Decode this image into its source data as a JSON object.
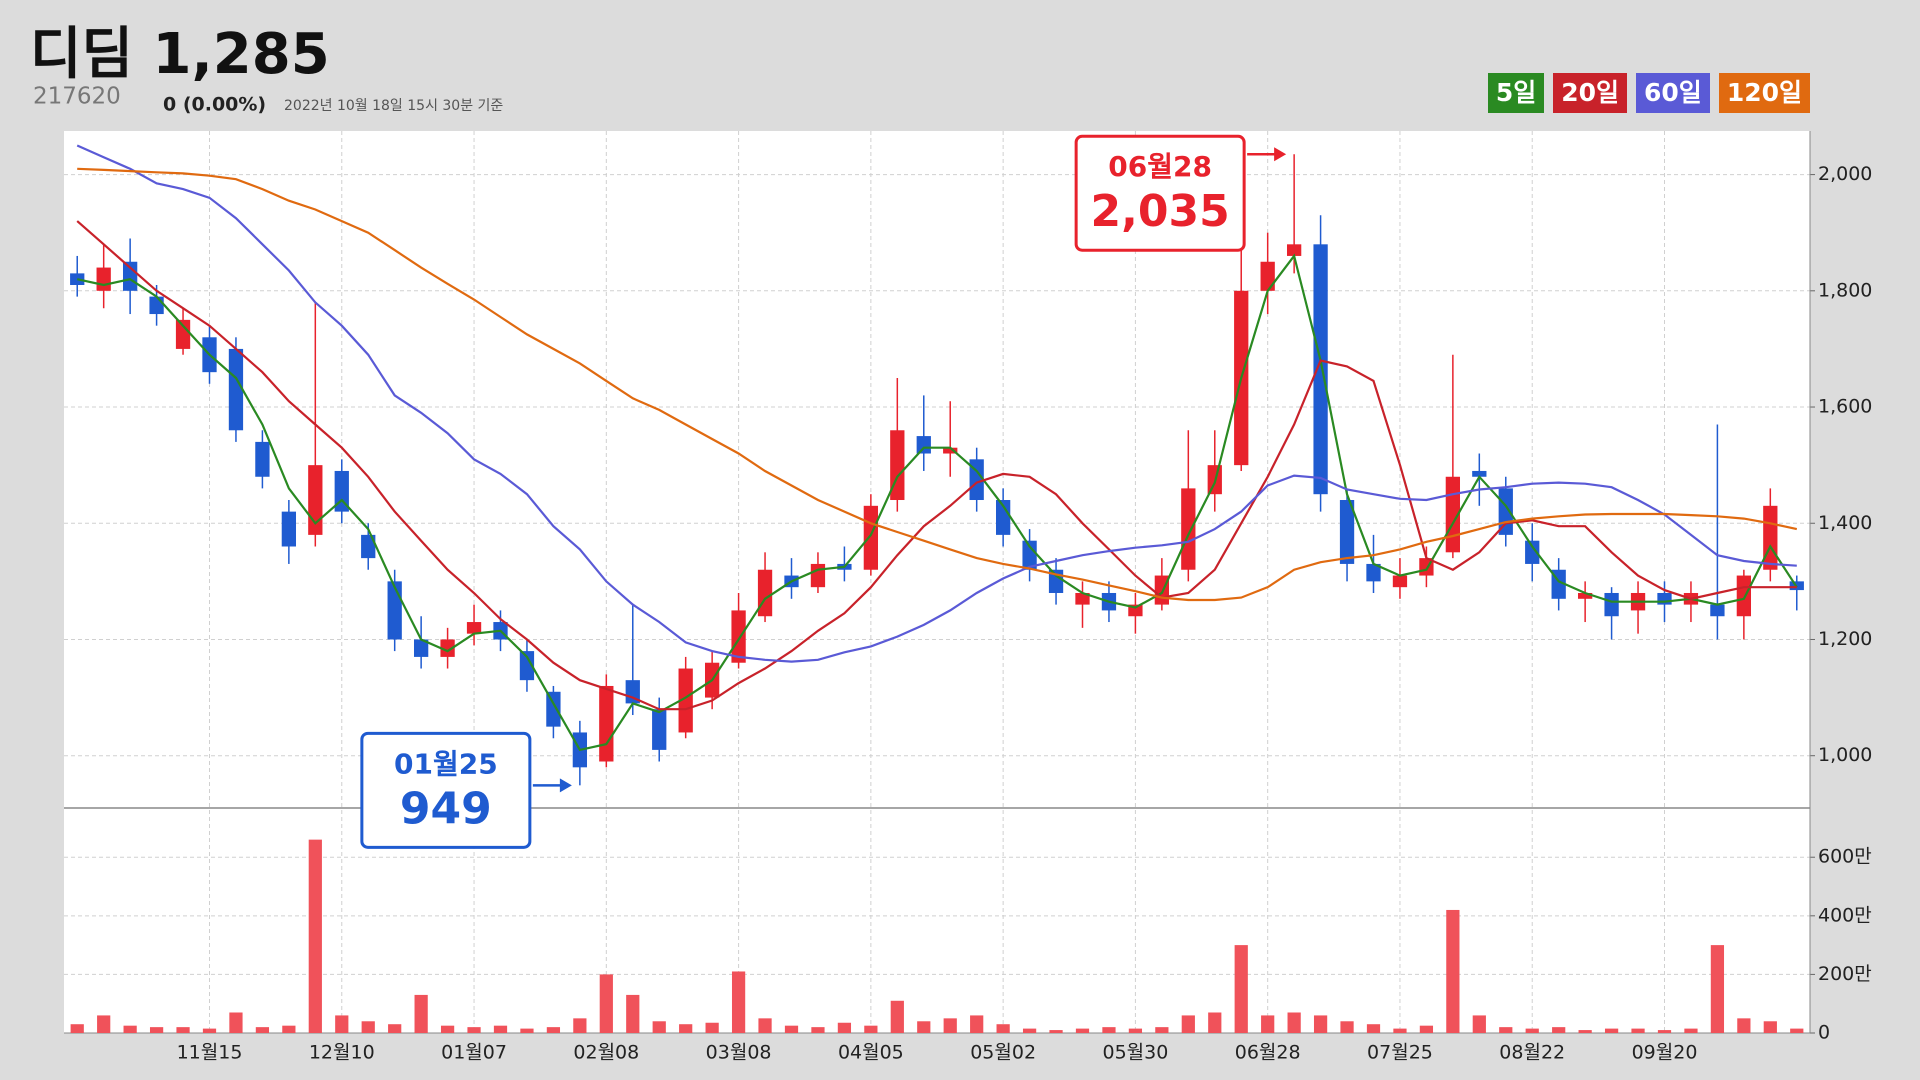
{
  "header": {
    "name": "디딤",
    "price": "1,285",
    "code": "217620",
    "change": "0 (0.00%)",
    "timestamp": "2022년 10월 18일 15시 30분 기준"
  },
  "chart_data": [
    {
      "type": "candlestick",
      "categories": [
        null,
        null,
        null,
        null,
        null,
        "11월15",
        null,
        null,
        null,
        null,
        "12월10",
        null,
        null,
        null,
        null,
        "01월07",
        null,
        null,
        null,
        null,
        "02월08",
        null,
        null,
        null,
        null,
        "03월08",
        null,
        null,
        null,
        null,
        "04월05",
        null,
        null,
        null,
        null,
        "05월02",
        null,
        null,
        null,
        null,
        "05월30",
        null,
        null,
        null,
        null,
        "06월28",
        null,
        null,
        null,
        null,
        "07월25",
        null,
        null,
        null,
        null,
        "08월22",
        null,
        null,
        null,
        null,
        "09월20",
        null,
        null,
        null,
        null,
        null
      ],
      "open": [
        1830,
        1800,
        1850,
        1790,
        1700,
        1720,
        1700,
        1540,
        1420,
        1380,
        1490,
        1380,
        1300,
        1200,
        1170,
        1210,
        1230,
        1180,
        1110,
        1040,
        990,
        1130,
        1080,
        1040,
        1100,
        1160,
        1240,
        1310,
        1290,
        1330,
        1320,
        1440,
        1550,
        1520,
        1510,
        1440,
        1370,
        1320,
        1260,
        1280,
        1240,
        1260,
        1320,
        1450,
        1500,
        1800,
        1860,
        1880,
        1440,
        1330,
        1290,
        1310,
        1350,
        1490,
        1460,
        1370,
        1320,
        1270,
        1280,
        1250,
        1280,
        1260,
        1260,
        1240,
        1320,
        1300
      ],
      "high": [
        1860,
        1880,
        1890,
        1810,
        1770,
        1740,
        1720,
        1560,
        1440,
        1780,
        1510,
        1400,
        1320,
        1240,
        1220,
        1260,
        1250,
        1200,
        1120,
        1060,
        1140,
        1260,
        1100,
        1170,
        1180,
        1280,
        1350,
        1340,
        1350,
        1360,
        1450,
        1650,
        1620,
        1610,
        1530,
        1460,
        1390,
        1340,
        1300,
        1300,
        1280,
        1340,
        1560,
        1560,
        1880,
        1900,
        2035,
        1930,
        1460,
        1380,
        1340,
        1360,
        1690,
        1520,
        1480,
        1400,
        1340,
        1300,
        1290,
        1300,
        1300,
        1300,
        1570,
        1320,
        1460,
        1310
      ],
      "low": [
        1790,
        1770,
        1760,
        1740,
        1690,
        1640,
        1540,
        1460,
        1330,
        1360,
        1400,
        1320,
        1180,
        1150,
        1150,
        1190,
        1180,
        1110,
        1030,
        949,
        980,
        1070,
        990,
        1030,
        1080,
        1150,
        1230,
        1270,
        1280,
        1300,
        1310,
        1420,
        1490,
        1480,
        1420,
        1360,
        1300,
        1260,
        1220,
        1230,
        1210,
        1250,
        1300,
        1420,
        1490,
        1760,
        1830,
        1420,
        1300,
        1280,
        1270,
        1290,
        1340,
        1430,
        1360,
        1300,
        1250,
        1230,
        1200,
        1210,
        1230,
        1230,
        1200,
        1200,
        1300,
        1250
      ],
      "close": [
        1810,
        1840,
        1800,
        1760,
        1750,
        1660,
        1560,
        1480,
        1360,
        1500,
        1420,
        1340,
        1200,
        1170,
        1200,
        1230,
        1200,
        1130,
        1050,
        980,
        1120,
        1090,
        1010,
        1150,
        1160,
        1250,
        1320,
        1290,
        1330,
        1320,
        1430,
        1560,
        1520,
        1530,
        1440,
        1380,
        1320,
        1280,
        1280,
        1250,
        1260,
        1310,
        1460,
        1500,
        1800,
        1850,
        1880,
        1450,
        1330,
        1300,
        1310,
        1340,
        1480,
        1480,
        1380,
        1330,
        1270,
        1280,
        1240,
        1280,
        1260,
        1280,
        1240,
        1310,
        1430,
        1285
      ],
      "up_color": "#e8222c",
      "down_color": "#1f5bd0",
      "series": [
        {
          "name": "5일",
          "color": "#2a8a22",
          "values": [
            1820,
            1810,
            1820,
            1790,
            1740,
            1690,
            1650,
            1570,
            1460,
            1400,
            1440,
            1390,
            1290,
            1200,
            1180,
            1210,
            1215,
            1170,
            1090,
            1010,
            1020,
            1090,
            1075,
            1100,
            1130,
            1200,
            1270,
            1300,
            1320,
            1325,
            1380,
            1480,
            1530,
            1530,
            1490,
            1430,
            1360,
            1310,
            1280,
            1265,
            1255,
            1280,
            1380,
            1470,
            1650,
            1800,
            1860,
            1680,
            1450,
            1330,
            1310,
            1320,
            1400,
            1480,
            1430,
            1360,
            1300,
            1280,
            1265,
            1265,
            1265,
            1270,
            1260,
            1270,
            1360,
            1290
          ]
        },
        {
          "name": "20일",
          "color": "#c8222a",
          "values": [
            1920,
            1880,
            1840,
            1800,
            1770,
            1740,
            1700,
            1660,
            1610,
            1570,
            1530,
            1480,
            1420,
            1370,
            1320,
            1280,
            1235,
            1200,
            1160,
            1130,
            1115,
            1100,
            1080,
            1080,
            1095,
            1125,
            1150,
            1180,
            1215,
            1245,
            1290,
            1345,
            1395,
            1430,
            1470,
            1485,
            1480,
            1450,
            1400,
            1355,
            1310,
            1272,
            1280,
            1320,
            1400,
            1480,
            1570,
            1680,
            1670,
            1645,
            1500,
            1340,
            1320,
            1350,
            1400,
            1405,
            1395,
            1395,
            1350,
            1310,
            1285,
            1270,
            1280,
            1290,
            1290,
            1290
          ]
        },
        {
          "name": "60일",
          "color": "#5a5ad6",
          "values": [
            2050,
            2030,
            2010,
            1985,
            1975,
            1960,
            1925,
            1880,
            1835,
            1780,
            1740,
            1690,
            1620,
            1590,
            1555,
            1510,
            1485,
            1450,
            1395,
            1355,
            1300,
            1260,
            1230,
            1195,
            1180,
            1170,
            1165,
            1162,
            1165,
            1178,
            1188,
            1205,
            1225,
            1250,
            1280,
            1305,
            1325,
            1335,
            1345,
            1352,
            1358,
            1362,
            1368,
            1390,
            1420,
            1465,
            1482,
            1478,
            1458,
            1450,
            1442,
            1440,
            1450,
            1458,
            1462,
            1468,
            1470,
            1468,
            1462,
            1440,
            1415,
            1380,
            1345,
            1335,
            1330,
            1327
          ]
        },
        {
          "name": "120일",
          "color": "#e06a10",
          "values": [
            2010,
            2008,
            2006,
            2004,
            2002,
            1998,
            1992,
            1975,
            1955,
            1940,
            1920,
            1900,
            1870,
            1840,
            1812,
            1785,
            1755,
            1725,
            1700,
            1675,
            1645,
            1615,
            1595,
            1570,
            1545,
            1520,
            1490,
            1465,
            1440,
            1420,
            1400,
            1385,
            1370,
            1355,
            1340,
            1330,
            1322,
            1312,
            1303,
            1293,
            1283,
            1272,
            1268,
            1268,
            1272,
            1290,
            1320,
            1333,
            1340,
            1345,
            1355,
            1368,
            1378,
            1390,
            1402,
            1408,
            1412,
            1415,
            1416,
            1416,
            1416,
            1414,
            1412,
            1408,
            1400,
            1390
          ]
        }
      ],
      "ylim": [
        910,
        2075
      ],
      "yticks": [
        {
          "value": 1000,
          "label": "1,000"
        },
        {
          "value": 1200,
          "label": "1,200"
        },
        {
          "value": 1400,
          "label": "1,400"
        },
        {
          "value": 1600,
          "label": "1,600"
        },
        {
          "value": 1800,
          "label": "1,800"
        },
        {
          "value": 2000,
          "label": "2,000"
        }
      ],
      "grid": true,
      "annotations": [
        {
          "text": "06월28",
          "value": 2035,
          "label": "2,035",
          "color": "#e8222c"
        },
        {
          "text": "01월25",
          "value": 949,
          "label": "949",
          "color": "#1f5bd0"
        }
      ]
    },
    {
      "type": "bar",
      "color": "#f0525a",
      "values": [
        30,
        60,
        25,
        20,
        20,
        15,
        70,
        20,
        25,
        660,
        60,
        40,
        30,
        130,
        25,
        20,
        25,
        15,
        20,
        50,
        200,
        130,
        40,
        30,
        35,
        210,
        50,
        25,
        20,
        35,
        25,
        110,
        40,
        50,
        60,
        30,
        15,
        10,
        15,
        20,
        15,
        20,
        60,
        70,
        300,
        60,
        70,
        60,
        40,
        30,
        15,
        25,
        420,
        60,
        20,
        15,
        20,
        10,
        15,
        15,
        10,
        15,
        300,
        50,
        40,
        15
      ],
      "ylim": [
        0,
        768
      ],
      "yticks": [
        0,
        {
          "value": 200,
          "label": "200만"
        },
        {
          "value": 400,
          "label": "400만"
        },
        {
          "value": 600,
          "label": "600만"
        }
      ],
      "grid": true
    }
  ]
}
